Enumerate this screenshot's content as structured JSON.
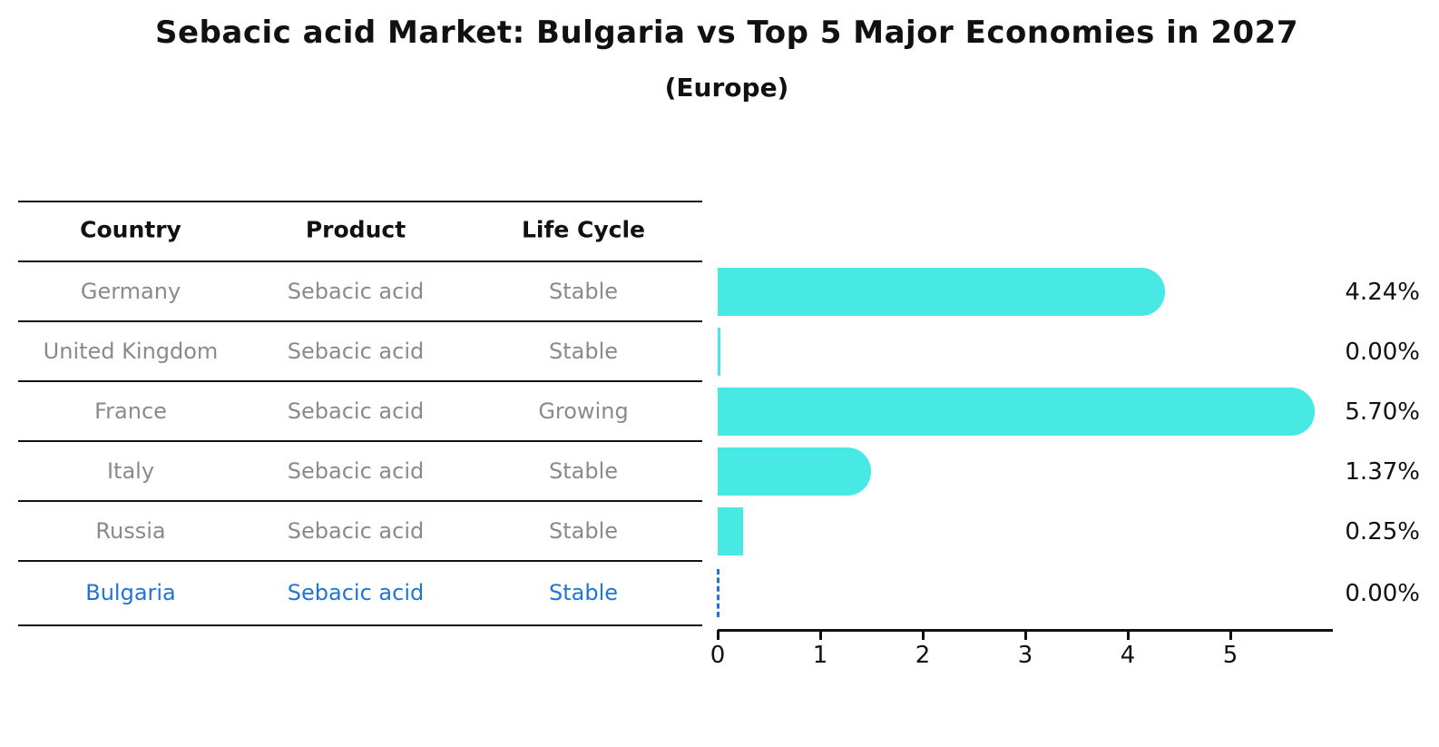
{
  "title": "Sebacic acid Market: Bulgaria vs Top 5 Major Economies in 2027",
  "subtitle": "(Europe)",
  "table": {
    "headers": [
      "Country",
      "Product",
      "Life Cycle"
    ],
    "rows": [
      {
        "country": "Germany",
        "product": "Sebacic acid",
        "life_cycle": "Stable",
        "highlight": false
      },
      {
        "country": "United Kingdom",
        "product": "Sebacic acid",
        "life_cycle": "Stable",
        "highlight": false
      },
      {
        "country": "France",
        "product": "Sebacic acid",
        "life_cycle": "Growing",
        "highlight": false
      },
      {
        "country": "Italy",
        "product": "Sebacic acid",
        "life_cycle": "Stable",
        "highlight": false
      },
      {
        "country": "Russia",
        "product": "Sebacic acid",
        "life_cycle": "Stable",
        "highlight": false
      },
      {
        "country": "Bulgaria",
        "product": "Sebacic acid",
        "life_cycle": "Stable",
        "highlight": true
      }
    ]
  },
  "chart_data": {
    "type": "bar",
    "orientation": "horizontal",
    "title": "Sebacic acid Market: Bulgaria vs Top 5 Major Economies in 2027",
    "subtitle": "(Europe)",
    "categories": [
      "Germany",
      "United Kingdom",
      "France",
      "Italy",
      "Russia",
      "Bulgaria"
    ],
    "values": [
      4.24,
      0.0,
      5.7,
      1.37,
      0.25,
      0.0
    ],
    "value_labels": [
      "4.24%",
      "0.00%",
      "5.70%",
      "1.37%",
      "0.25%",
      "0.00%"
    ],
    "xticks": [
      0,
      1,
      2,
      3,
      4,
      5
    ],
    "xlim": [
      0,
      6
    ],
    "grid": false,
    "legend": false,
    "highlight_index": 5,
    "highlight_marker": "dashed-zero-line"
  },
  "colors": {
    "bar": "#48E8E5",
    "highlight_blue": "#2274D4",
    "row_text": "#8a8a8a",
    "header_text": "#111111",
    "axis": "#111111",
    "percent_text": "#111111"
  }
}
